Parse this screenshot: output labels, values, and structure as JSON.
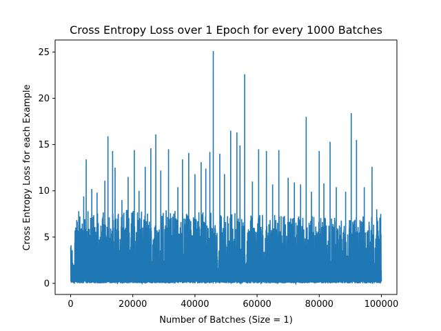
{
  "chart_data": {
    "type": "line",
    "title": "Cross Entropy Loss over 1 Epoch for every 1000 Batches",
    "xlabel": "Number of Batches (Size = 1)",
    "ylabel": "Cross Entropy Loss for each Example",
    "xlim": [
      -5000,
      105000
    ],
    "ylim": [
      -1.2,
      26.3
    ],
    "xticks": [
      0,
      20000,
      40000,
      60000,
      80000,
      100000
    ],
    "xtick_labels": [
      "0",
      "20000",
      "40000",
      "60000",
      "80000",
      "100000"
    ],
    "yticks": [
      0,
      5,
      10,
      15,
      20,
      25
    ],
    "ytick_labels": [
      "0",
      "5",
      "10",
      "15",
      "20",
      "25"
    ],
    "grid": false,
    "series": [
      {
        "color": "#1f77b4",
        "x_range": [
          0,
          100000
        ],
        "min_value": 0.0,
        "typical_upper_envelope": [
          [
            0,
            4.0
          ],
          [
            1000,
            6.3
          ],
          [
            2000,
            7.0
          ],
          [
            3000,
            7.5
          ],
          [
            5000,
            7.8
          ],
          [
            10000,
            8.0
          ],
          [
            20000,
            8.0
          ],
          [
            40000,
            7.8
          ],
          [
            60000,
            7.5
          ],
          [
            80000,
            7.3
          ],
          [
            100000,
            7.2
          ]
        ],
        "peaks": [
          [
            2600,
            7.8
          ],
          [
            4200,
            9.4
          ],
          [
            5000,
            13.4
          ],
          [
            6800,
            10.2
          ],
          [
            8500,
            9.8
          ],
          [
            11000,
            11.1
          ],
          [
            12000,
            15.9
          ],
          [
            13500,
            14.3
          ],
          [
            14300,
            12.5
          ],
          [
            16500,
            9.0
          ],
          [
            18500,
            11.5
          ],
          [
            20500,
            14.4
          ],
          [
            22000,
            10.0
          ],
          [
            24000,
            12.6
          ],
          [
            25800,
            14.6
          ],
          [
            27400,
            16.1
          ],
          [
            29000,
            12.2
          ],
          [
            31500,
            14.5
          ],
          [
            34500,
            10.4
          ],
          [
            36000,
            13.4
          ],
          [
            38000,
            14.1
          ],
          [
            40000,
            11.8
          ],
          [
            42000,
            13.1
          ],
          [
            43500,
            12.4
          ],
          [
            44800,
            14.2
          ],
          [
            45900,
            25.1
          ],
          [
            48000,
            14.0
          ],
          [
            49500,
            11.8
          ],
          [
            51500,
            16.5
          ],
          [
            53500,
            16.3
          ],
          [
            54500,
            14.9
          ],
          [
            56000,
            22.6
          ],
          [
            58500,
            11.0
          ],
          [
            60500,
            14.5
          ],
          [
            63000,
            14.3
          ],
          [
            65000,
            10.7
          ],
          [
            67000,
            14.4
          ],
          [
            70000,
            11.4
          ],
          [
            72000,
            10.9
          ],
          [
            74000,
            10.7
          ],
          [
            75800,
            18.0
          ],
          [
            77500,
            9.9
          ],
          [
            80000,
            14.3
          ],
          [
            81500,
            10.8
          ],
          [
            83500,
            15.3
          ],
          [
            85500,
            10.4
          ],
          [
            88500,
            9.9
          ],
          [
            90300,
            18.4
          ],
          [
            92000,
            15.5
          ],
          [
            94500,
            10.4
          ],
          [
            97000,
            12.6
          ],
          [
            98500,
            8.0
          ],
          [
            99800,
            7.5
          ]
        ]
      }
    ]
  }
}
